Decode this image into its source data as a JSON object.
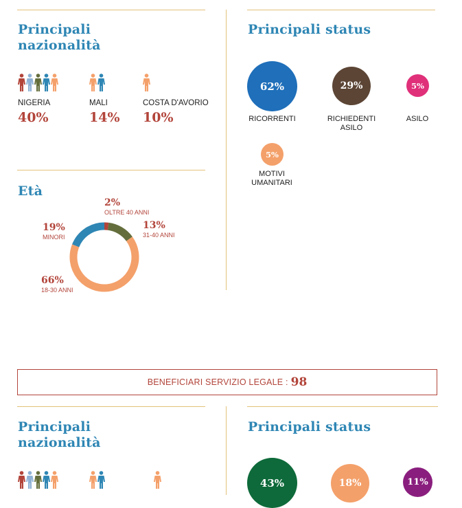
{
  "section1": {
    "nationalities_title_line1": "Principali",
    "nationalities_title_line2": "nazionalità",
    "nationalities": [
      {
        "name": "NIGERIA",
        "pct": "40%",
        "people_colors": [
          "#b2443a",
          "#8fb2d6",
          "#646e3c",
          "#2e86b4",
          "#f4a06a"
        ]
      },
      {
        "name": "MALI",
        "pct": "14%",
        "people_colors": [
          "#f4a06a",
          "#2e86b4"
        ]
      },
      {
        "name": "COSTA D'AVORIO",
        "pct": "10%",
        "people_colors": [
          "#f4a06a"
        ]
      }
    ],
    "age_title": "Età",
    "age_chart": {
      "type": "pie",
      "slices": [
        {
          "label": "OLTRE 40 ANNI",
          "pct_text": "2%",
          "value": 2,
          "color": "#b2443a"
        },
        {
          "label": "31-40 ANNI",
          "pct_text": "13%",
          "value": 13,
          "color": "#646e3c"
        },
        {
          "label": "18-30 ANNI",
          "pct_text": "66%",
          "value": 66,
          "color": "#f4a06a"
        },
        {
          "label": "MINORI",
          "pct_text": "19%",
          "value": 19,
          "color": "#2e86b4"
        }
      ]
    },
    "status_title": "Principali status",
    "status": [
      {
        "pct": "62%",
        "label1": "RICORRENTI",
        "label2": "",
        "color": "#1f6fba"
      },
      {
        "pct": "29%",
        "label1": "RICHIEDENTI",
        "label2": "ASILO",
        "color": "#5c4535"
      },
      {
        "pct": "5%",
        "label1": "ASILO",
        "label2": "",
        "color": "#e0307a"
      },
      {
        "pct": "5%",
        "label1": "MOTIVI",
        "label2": "UMANITARI",
        "color": "#f4a06a"
      }
    ]
  },
  "legal": {
    "label": "BENEFICIARI SERVIZIO LEGALE :",
    "value": "98"
  },
  "section2": {
    "nationalities_title_line1": "Principali",
    "nationalities_title_line2": "nazionalità",
    "status_title": "Principali status",
    "people_groups": [
      [
        "#b2443a",
        "#8fb2d6",
        "#646e3c",
        "#2e86b4",
        "#f4a06a"
      ],
      [
        "#f4a06a",
        "#2e86b4"
      ],
      [
        "#f4a06a"
      ]
    ],
    "status": [
      {
        "pct": "43%",
        "color": "#0e6a3a"
      },
      {
        "pct": "18%",
        "color": "#f4a06a"
      },
      {
        "pct": "11%",
        "color": "#8a1e7e"
      }
    ]
  }
}
